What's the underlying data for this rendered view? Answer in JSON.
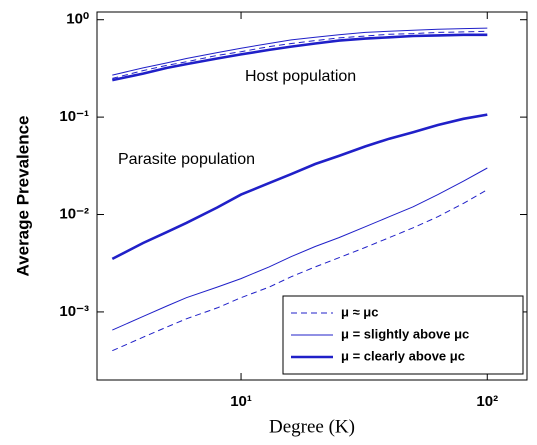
{
  "chart_data": {
    "type": "line",
    "xlabel": "Degree (K)",
    "ylabel": "Average Prevalence",
    "annotations": [
      "Host population",
      "Parasite population"
    ],
    "x": [
      3,
      4,
      5,
      6,
      8,
      10,
      13,
      16,
      20,
      25,
      32,
      40,
      50,
      63,
      80,
      100
    ],
    "xlog": true,
    "ylog": true,
    "xlim": [
      2.6,
      145
    ],
    "ylim": [
      0.0002,
      1.2
    ],
    "xticks": [
      {
        "value": 10,
        "label": "10¹"
      },
      {
        "value": 100,
        "label": "10²"
      }
    ],
    "yticks": [
      {
        "value": 0.001,
        "label": "10⁻³"
      },
      {
        "value": 0.01,
        "label": "10⁻²"
      },
      {
        "value": 0.1,
        "label": "10⁻¹"
      },
      {
        "value": 1,
        "label": "10⁰"
      }
    ],
    "legend": "lower right",
    "series": [
      {
        "color": "#2020c8",
        "style": "dashed",
        "values": [
          0.25,
          0.3,
          0.34,
          0.37,
          0.43,
          0.47,
          0.53,
          0.57,
          0.61,
          0.65,
          0.68,
          0.71,
          0.72,
          0.74,
          0.75,
          0.76
        ]
      },
      {
        "color": "#2020c8",
        "style": "thin",
        "values": [
          0.27,
          0.32,
          0.36,
          0.4,
          0.46,
          0.51,
          0.57,
          0.62,
          0.66,
          0.7,
          0.74,
          0.76,
          0.78,
          0.8,
          0.81,
          0.82
        ]
      },
      {
        "color": "#2020c8",
        "style": "thick",
        "values": [
          0.24,
          0.28,
          0.32,
          0.35,
          0.4,
          0.44,
          0.49,
          0.53,
          0.57,
          0.61,
          0.64,
          0.66,
          0.68,
          0.69,
          0.7,
          0.7
        ]
      },
      {
        "name": "μ ≈ μc",
        "color": "#2020c8",
        "style": "dashed",
        "values": [
          0.0004,
          0.00055,
          0.0007,
          0.00085,
          0.0011,
          0.0014,
          0.0018,
          0.0023,
          0.0029,
          0.0036,
          0.0046,
          0.0058,
          0.0073,
          0.0095,
          0.013,
          0.018
        ]
      },
      {
        "name": "μ = slightly above μc",
        "color": "#2020c8",
        "style": "thin",
        "values": [
          0.00065,
          0.0009,
          0.00115,
          0.0014,
          0.0018,
          0.0022,
          0.0029,
          0.0037,
          0.0047,
          0.0058,
          0.0075,
          0.0095,
          0.012,
          0.016,
          0.022,
          0.03
        ]
      },
      {
        "name": "μ = clearly above μc",
        "color": "#2020c8",
        "style": "thick",
        "values": [
          0.0035,
          0.0051,
          0.0066,
          0.0082,
          0.0118,
          0.016,
          0.021,
          0.026,
          0.033,
          0.04,
          0.05,
          0.06,
          0.07,
          0.083,
          0.096,
          0.106
        ]
      }
    ]
  }
}
